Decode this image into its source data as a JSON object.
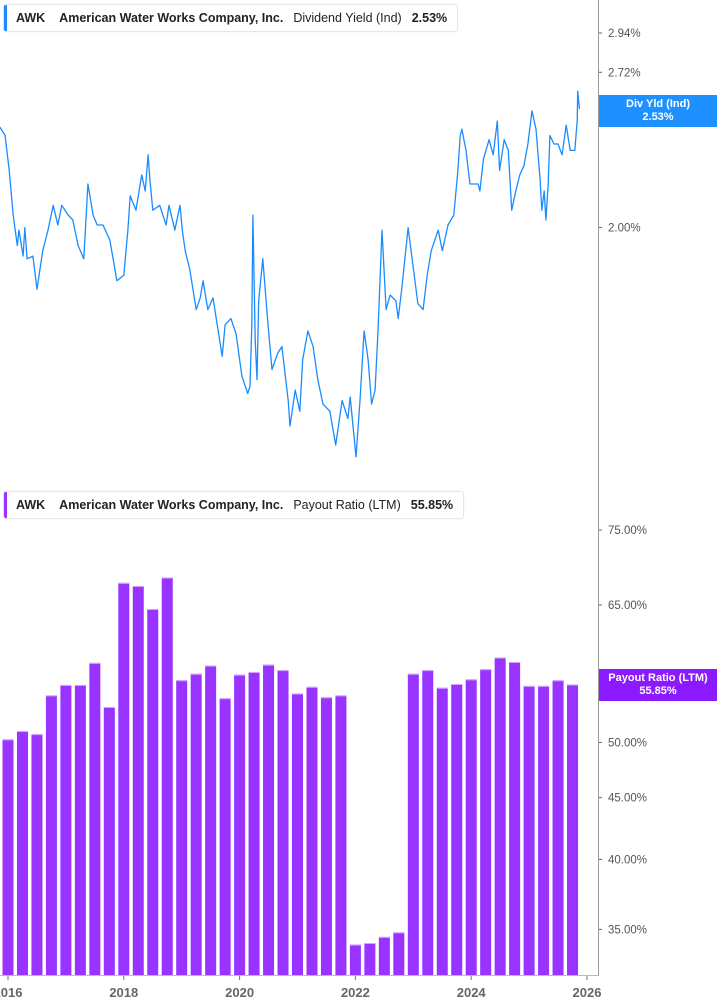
{
  "colors": {
    "dividend_line": "#1a8cff",
    "payout_bar": "#9933ff",
    "payout_flag": "#8c1aff",
    "dividend_flag": "#1e90ff"
  },
  "top_legend": {
    "ticker": "AWK",
    "company": "American Water Works Company, Inc.",
    "metric": "Dividend Yield (Ind)",
    "value": "2.53%"
  },
  "bottom_legend": {
    "ticker": "AWK",
    "company": "American Water Works Company, Inc.",
    "metric": "Payout Ratio (LTM)",
    "value": "55.85%"
  },
  "top_flag": {
    "label": "Div Yld (Ind)",
    "value": "2.53%"
  },
  "bottom_flag": {
    "label": "Payout Ratio (LTM)",
    "value": "55.85%"
  },
  "chart_data": [
    {
      "type": "line",
      "title": "",
      "y_scale": "log",
      "y_ticks": [
        {
          "v": 2.94,
          "label": "2.94%"
        },
        {
          "v": 2.72,
          "label": "2.72%"
        },
        {
          "v": 2.0,
          "label": "2.00%"
        }
      ],
      "ylim": [
        1.25,
        3.15
      ],
      "xlim": [
        2015.86,
        2026.2
      ],
      "grid": false,
      "series": [
        {
          "name": "Dividend Yield (Ind)",
          "unit": "%",
          "points": [
            [
              2015.86,
              2.44
            ],
            [
              2015.95,
              2.4
            ],
            [
              2016.02,
              2.24
            ],
            [
              2016.09,
              2.05
            ],
            [
              2016.16,
              1.93
            ],
            [
              2016.19,
              1.99
            ],
            [
              2016.26,
              1.89
            ],
            [
              2016.29,
              2.0
            ],
            [
              2016.33,
              1.88
            ],
            [
              2016.43,
              1.89
            ],
            [
              2016.5,
              1.77
            ],
            [
              2016.6,
              1.91
            ],
            [
              2016.69,
              1.99
            ],
            [
              2016.78,
              2.09
            ],
            [
              2016.86,
              2.01
            ],
            [
              2016.93,
              2.09
            ],
            [
              2017.04,
              2.05
            ],
            [
              2017.12,
              2.03
            ],
            [
              2017.21,
              1.93
            ],
            [
              2017.31,
              1.88
            ],
            [
              2017.38,
              2.18
            ],
            [
              2017.47,
              2.05
            ],
            [
              2017.54,
              2.01
            ],
            [
              2017.64,
              2.01
            ],
            [
              2017.76,
              1.95
            ],
            [
              2017.88,
              1.8
            ],
            [
              2018.0,
              1.82
            ],
            [
              2018.07,
              1.99
            ],
            [
              2018.11,
              2.13
            ],
            [
              2018.21,
              2.07
            ],
            [
              2018.31,
              2.22
            ],
            [
              2018.37,
              2.15
            ],
            [
              2018.42,
              2.31
            ],
            [
              2018.45,
              2.2
            ],
            [
              2018.5,
              2.07
            ],
            [
              2018.62,
              2.09
            ],
            [
              2018.73,
              2.01
            ],
            [
              2018.78,
              2.09
            ],
            [
              2018.88,
              1.99
            ],
            [
              2018.97,
              2.09
            ],
            [
              2019.01,
              1.99
            ],
            [
              2019.06,
              1.91
            ],
            [
              2019.14,
              1.84
            ],
            [
              2019.25,
              1.7
            ],
            [
              2019.32,
              1.74
            ],
            [
              2019.37,
              1.8
            ],
            [
              2019.45,
              1.7
            ],
            [
              2019.54,
              1.74
            ],
            [
              2019.63,
              1.63
            ],
            [
              2019.7,
              1.55
            ],
            [
              2019.75,
              1.65
            ],
            [
              2019.85,
              1.67
            ],
            [
              2019.94,
              1.62
            ],
            [
              2020.04,
              1.49
            ],
            [
              2020.14,
              1.44
            ],
            [
              2020.18,
              1.46
            ],
            [
              2020.21,
              1.65
            ],
            [
              2020.23,
              2.05
            ],
            [
              2020.27,
              1.6
            ],
            [
              2020.3,
              1.48
            ],
            [
              2020.33,
              1.73
            ],
            [
              2020.4,
              1.88
            ],
            [
              2020.49,
              1.65
            ],
            [
              2020.56,
              1.51
            ],
            [
              2020.66,
              1.56
            ],
            [
              2020.73,
              1.58
            ],
            [
              2020.84,
              1.42
            ],
            [
              2020.87,
              1.35
            ],
            [
              2020.96,
              1.45
            ],
            [
              2021.04,
              1.39
            ],
            [
              2021.09,
              1.54
            ],
            [
              2021.18,
              1.63
            ],
            [
              2021.27,
              1.58
            ],
            [
              2021.35,
              1.48
            ],
            [
              2021.44,
              1.41
            ],
            [
              2021.56,
              1.39
            ],
            [
              2021.66,
              1.3
            ],
            [
              2021.77,
              1.42
            ],
            [
              2021.87,
              1.37
            ],
            [
              2021.91,
              1.43
            ],
            [
              2022.01,
              1.27
            ],
            [
              2022.08,
              1.42
            ],
            [
              2022.15,
              1.63
            ],
            [
              2022.22,
              1.54
            ],
            [
              2022.28,
              1.41
            ],
            [
              2022.34,
              1.45
            ],
            [
              2022.39,
              1.63
            ],
            [
              2022.46,
              1.99
            ],
            [
              2022.53,
              1.7
            ],
            [
              2022.6,
              1.75
            ],
            [
              2022.7,
              1.73
            ],
            [
              2022.74,
              1.67
            ],
            [
              2022.8,
              1.77
            ],
            [
              2022.91,
              2.0
            ],
            [
              2022.98,
              1.88
            ],
            [
              2023.08,
              1.72
            ],
            [
              2023.17,
              1.7
            ],
            [
              2023.24,
              1.82
            ],
            [
              2023.31,
              1.91
            ],
            [
              2023.43,
              1.99
            ],
            [
              2023.5,
              1.91
            ],
            [
              2023.6,
              2.01
            ],
            [
              2023.7,
              2.05
            ],
            [
              2023.77,
              2.24
            ],
            [
              2023.81,
              2.4
            ],
            [
              2023.84,
              2.43
            ],
            [
              2023.91,
              2.33
            ],
            [
              2023.98,
              2.18
            ],
            [
              2024.12,
              2.18
            ],
            [
              2024.15,
              2.15
            ],
            [
              2024.21,
              2.29
            ],
            [
              2024.31,
              2.38
            ],
            [
              2024.38,
              2.31
            ],
            [
              2024.45,
              2.47
            ],
            [
              2024.49,
              2.24
            ],
            [
              2024.57,
              2.38
            ],
            [
              2024.64,
              2.33
            ],
            [
              2024.7,
              2.07
            ],
            [
              2024.77,
              2.15
            ],
            [
              2024.84,
              2.22
            ],
            [
              2024.91,
              2.26
            ],
            [
              2024.98,
              2.36
            ],
            [
              2025.05,
              2.52
            ],
            [
              2025.12,
              2.43
            ],
            [
              2025.19,
              2.2
            ],
            [
              2025.22,
              2.07
            ],
            [
              2025.26,
              2.15
            ],
            [
              2025.29,
              2.03
            ],
            [
              2025.33,
              2.18
            ],
            [
              2025.36,
              2.4
            ],
            [
              2025.43,
              2.36
            ],
            [
              2025.5,
              2.36
            ],
            [
              2025.57,
              2.31
            ],
            [
              2025.64,
              2.45
            ],
            [
              2025.71,
              2.33
            ],
            [
              2025.79,
              2.33
            ],
            [
              2025.83,
              2.47
            ],
            [
              2025.84,
              2.62
            ],
            [
              2025.86,
              2.56
            ],
            [
              2025.87,
              2.53
            ]
          ]
        }
      ]
    },
    {
      "type": "bar",
      "title": "",
      "y_scale": "log",
      "y_ticks": [
        {
          "v": 75,
          "label": "75.00%"
        },
        {
          "v": 65,
          "label": "65.00%"
        },
        {
          "v": 55,
          "label": "55.00%"
        },
        {
          "v": 50,
          "label": "50.00%"
        },
        {
          "v": 45,
          "label": "45.00%"
        },
        {
          "v": 40,
          "label": "40.00%"
        },
        {
          "v": 35,
          "label": "35.00%"
        }
      ],
      "ylim": [
        31.9,
        80
      ],
      "x_ticks": [
        "2016",
        "2018",
        "2020",
        "2022",
        "2024",
        "2026"
      ],
      "xlim": [
        2015.86,
        2026.2
      ],
      "grid": false,
      "series": [
        {
          "name": "Payout Ratio (LTM)",
          "unit": "%",
          "x": [
            2016.0,
            2016.25,
            2016.5,
            2016.75,
            2017.0,
            2017.25,
            2017.5,
            2017.75,
            2018.0,
            2018.25,
            2018.5,
            2018.75,
            2019.0,
            2019.25,
            2019.5,
            2019.75,
            2020.0,
            2020.25,
            2020.5,
            2020.75,
            2021.0,
            2021.25,
            2021.5,
            2021.75,
            2022.0,
            2022.25,
            2022.5,
            2022.75,
            2023.0,
            2023.25,
            2023.5,
            2023.75,
            2024.0,
            2024.25,
            2024.5,
            2024.75,
            2025.0,
            2025.25,
            2025.5,
            2025.75
          ],
          "values": [
            50.3,
            51.1,
            50.8,
            54.7,
            55.8,
            55.8,
            58.2,
            53.5,
            67.8,
            67.4,
            64.5,
            68.5,
            56.3,
            57.0,
            57.9,
            54.4,
            56.9,
            57.2,
            58.0,
            57.4,
            54.9,
            55.6,
            54.5,
            54.7,
            34.0,
            34.1,
            34.5,
            34.8,
            57.0,
            57.4,
            55.5,
            55.9,
            56.4,
            57.5,
            58.8,
            58.3,
            55.7,
            55.7,
            56.3,
            55.85
          ]
        }
      ]
    }
  ]
}
